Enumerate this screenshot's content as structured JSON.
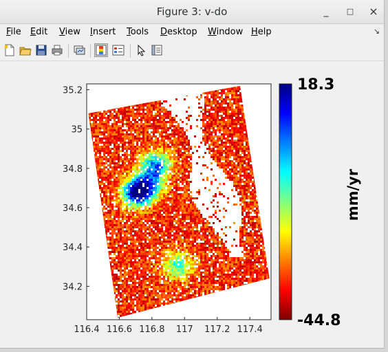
{
  "window": {
    "title": "Figure 3: v-do",
    "controls": [
      "_",
      "□",
      "×"
    ]
  },
  "menubar": {
    "items": [
      {
        "label": "File",
        "mnemonic": "F",
        "rest": "ile"
      },
      {
        "label": "Edit",
        "mnemonic": "E",
        "rest": "dit"
      },
      {
        "label": "View",
        "mnemonic": "V",
        "rest": "iew"
      },
      {
        "label": "Insert",
        "mnemonic": "I",
        "rest": "nsert"
      },
      {
        "label": "Tools",
        "mnemonic": "T",
        "rest": "ools"
      },
      {
        "label": "Desktop",
        "mnemonic": "D",
        "rest": "esktop"
      },
      {
        "label": "Window",
        "mnemonic": "W",
        "rest": "indow"
      },
      {
        "label": "Help",
        "mnemonic": "H",
        "rest": "elp"
      }
    ],
    "overflow_icon": "dock-arrow-icon"
  },
  "toolbar": {
    "tools": [
      {
        "name": "new-figure",
        "icon": "new-file-icon"
      },
      {
        "name": "open-file",
        "icon": "open-folder-icon"
      },
      {
        "name": "save-figure",
        "icon": "save-disk-icon"
      },
      {
        "name": "print-figure",
        "icon": "printer-icon"
      },
      {
        "name": "link-plot",
        "icon": "link-plot-icon"
      },
      {
        "name": "insert-colorbar",
        "icon": "colorbar-icon",
        "pressed": true
      },
      {
        "name": "insert-legend",
        "icon": "legend-icon"
      },
      {
        "name": "edit-plot",
        "icon": "pointer-arrow-icon"
      },
      {
        "name": "property-inspector",
        "icon": "property-inspector-icon"
      }
    ]
  },
  "chart_data": {
    "type": "heatmap",
    "title": "",
    "xlabel": "",
    "ylabel": "",
    "x_ticks": [
      "116.4",
      "116.6",
      "116.8",
      "117",
      "117.2",
      "117.4"
    ],
    "x_tick_values": [
      116.4,
      116.6,
      116.8,
      117.0,
      117.2,
      117.4
    ],
    "y_ticks": [
      "34.2",
      "34.4",
      "34.6",
      "34.8",
      "35",
      "35.2"
    ],
    "y_tick_values": [
      34.2,
      34.4,
      34.6,
      34.8,
      35.0,
      35.2
    ],
    "xlim": [
      116.4,
      117.53
    ],
    "ylim": [
      34.03,
      35.23
    ],
    "colormap": "jet",
    "colorbar": {
      "max_label": "18.3",
      "min_label": "-44.8",
      "max": 18.3,
      "min": -44.8,
      "unit_label": "mm/yr"
    },
    "data_footprint_corners": [
      [
        116.41,
        35.08
      ],
      [
        117.34,
        35.22
      ],
      [
        117.52,
        34.24
      ],
      [
        116.59,
        34.04
      ]
    ],
    "anomalies": [
      {
        "x": 116.7,
        "y": 34.68,
        "value": -40
      },
      {
        "x": 116.82,
        "y": 34.82,
        "value": -28
      },
      {
        "x": 116.77,
        "y": 34.72,
        "value": -22
      },
      {
        "x": 116.95,
        "y": 34.31,
        "value": -18
      }
    ],
    "background_value": 8
  }
}
